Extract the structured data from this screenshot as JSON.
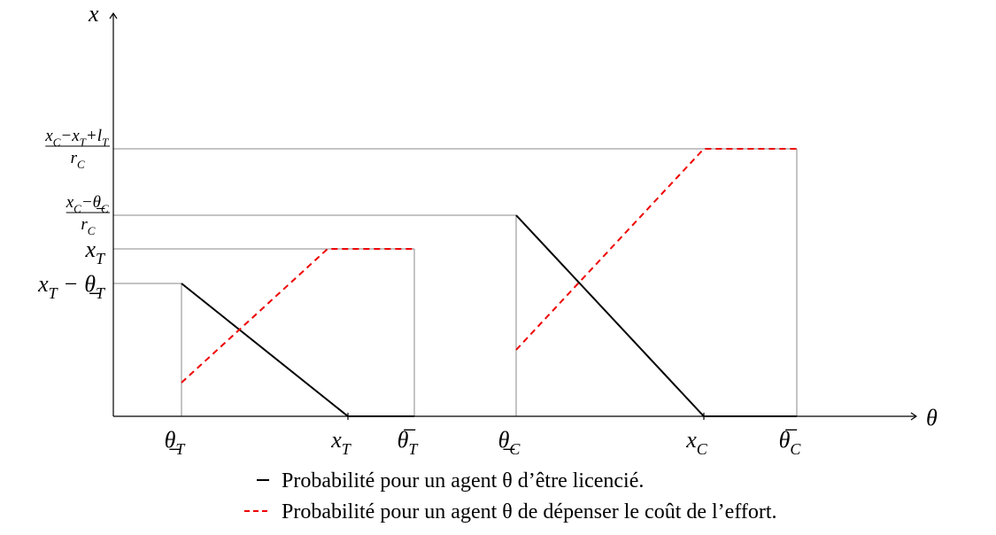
{
  "axes": {
    "y_label": "x",
    "x_label": "θ"
  },
  "x_ticks": [
    [
      [
        "θ̲",
        "T"
      ]
    ],
    [
      [
        "x",
        "T"
      ]
    ],
    [
      [
        "θ̅",
        "T"
      ]
    ],
    [
      [
        "θ̲",
        "C"
      ]
    ],
    [
      [
        "x",
        "C"
      ]
    ],
    [
      [
        "θ̅",
        "C"
      ]
    ]
  ],
  "y_ticks": [
    [
      [
        "x",
        "T"
      ],
      [
        " − θ̲",
        "T"
      ]
    ],
    [
      [
        "x",
        "T"
      ]
    ],
    {
      "num": [
        [
          "x",
          "C"
        ],
        [
          "−θ̲",
          "C"
        ]
      ],
      "den": [
        [
          "r",
          "C"
        ]
      ]
    },
    {
      "num": [
        [
          "x",
          "C"
        ],
        [
          "−x",
          "T"
        ],
        [
          "+l",
          "T"
        ]
      ],
      "den": [
        [
          "r",
          "C"
        ]
      ]
    }
  ],
  "legend": [
    "Probabilité pour un agent θ d’être licencié.",
    "Probabilité pour un agent θ de dépenser le coût de l’effort."
  ]
}
